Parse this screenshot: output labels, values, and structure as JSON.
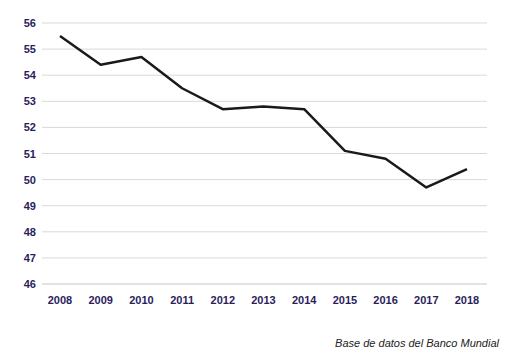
{
  "chart_data": {
    "type": "line",
    "categories": [
      "2008",
      "2009",
      "2010",
      "2011",
      "2012",
      "2013",
      "2014",
      "2015",
      "2016",
      "2017",
      "2018"
    ],
    "values": [
      55.5,
      54.4,
      54.7,
      53.5,
      52.7,
      52.8,
      52.7,
      51.1,
      50.8,
      49.7,
      50.4
    ],
    "color": "#1a1a1a",
    "ylim": [
      46,
      56
    ],
    "yticks": [
      46,
      47,
      48,
      49,
      50,
      51,
      52,
      53,
      54,
      55,
      56
    ],
    "grid": true,
    "annotations": [
      "Base de datos del Banco Mundial"
    ]
  }
}
